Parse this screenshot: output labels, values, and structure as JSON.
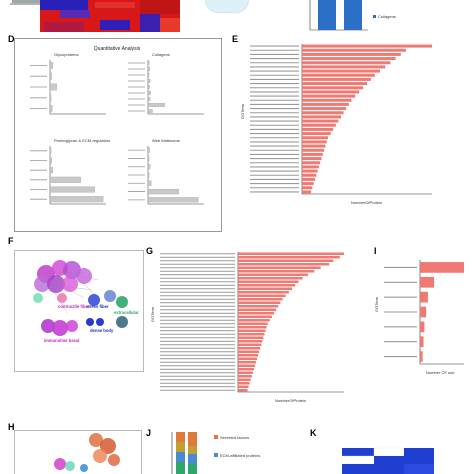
{
  "panels": {
    "A": {
      "letter": ""
    },
    "B": {
      "letter": ""
    },
    "C": {
      "legend": [
        "Collagens"
      ]
    },
    "D": {
      "letter": "D",
      "title": "Quantitative Analysis",
      "subpanels": [
        {
          "title": "Glycoproteins",
          "values": [
            0.05,
            0.03,
            0.12,
            0.02,
            0.04
          ]
        },
        {
          "title": "Collagens",
          "values": [
            0.02,
            0.03,
            0.02,
            0.04,
            0.03,
            0.05,
            0.04,
            0.3,
            0.08
          ]
        },
        {
          "title": "Proteoglycan & ECM-regulators",
          "values": [
            0.02,
            0.03,
            0.05,
            0.55,
            0.8,
            0.95
          ]
        },
        {
          "title": "Web Matrisome",
          "values": [
            0.03,
            0.02,
            0.04,
            0.02,
            0.06,
            0.55,
            0.9
          ]
        }
      ]
    },
    "E": {
      "letter": "E",
      "xlabel": "NumberOfProtein",
      "ylabel": "GOTerm",
      "bar_color": "#f07a73",
      "values": [
        1.0,
        0.8,
        0.76,
        0.72,
        0.68,
        0.64,
        0.6,
        0.56,
        0.53,
        0.5,
        0.47,
        0.44,
        0.41,
        0.38,
        0.36,
        0.34,
        0.32,
        0.3,
        0.28,
        0.26,
        0.24,
        0.22,
        0.2,
        0.19,
        0.18,
        0.17,
        0.16,
        0.15,
        0.14,
        0.13,
        0.12,
        0.11,
        0.1,
        0.09,
        0.08,
        0.07
      ]
    },
    "F": {
      "letter": "F",
      "labels": [
        {
          "text": "stress fiber",
          "color": "#1f2fd0"
        },
        {
          "text": "contractile fiber",
          "color": "#c02ac0"
        },
        {
          "text": "dense body",
          "color": "#1f2fd0"
        },
        {
          "text": "immunoline basal",
          "color": "#c02ac0"
        },
        {
          "text": "extracellular",
          "color": "#2ea86a"
        }
      ]
    },
    "G": {
      "letter": "G",
      "xlabel": "NumberOfProtein",
      "ylabel": "GOTerm",
      "bar_color": "#f07a73",
      "values": [
        1.0,
        0.96,
        0.9,
        0.86,
        0.78,
        0.72,
        0.66,
        0.61,
        0.57,
        0.54,
        0.51,
        0.48,
        0.45,
        0.42,
        0.4,
        0.38,
        0.36,
        0.34,
        0.32,
        0.3,
        0.28,
        0.27,
        0.26,
        0.25,
        0.24,
        0.23,
        0.22,
        0.21,
        0.2,
        0.19,
        0.18,
        0.17,
        0.16,
        0.15,
        0.14,
        0.13,
        0.12,
        0.11,
        0.1,
        0.09
      ]
    },
    "H": {
      "letter": "H"
    },
    "I": {
      "letter": "I",
      "xlabel": "Number OF sub",
      "ylabel": "GOTerm",
      "bar_color": "#f07a73",
      "values": [
        1.0,
        0.32,
        0.18,
        0.14,
        0.1,
        0.08,
        0.06
      ]
    },
    "J": {
      "letter": "J",
      "legend": [
        {
          "text": "Secreted factors",
          "color": "#e07a3a"
        },
        {
          "text": "ECM-affiliated proteins",
          "color": "#4a8ad0"
        }
      ]
    },
    "K": {
      "letter": "K"
    }
  },
  "colors": {
    "bar": "#f07a73",
    "blue": "#1f3fd0",
    "heat_red": "#d81818"
  }
}
